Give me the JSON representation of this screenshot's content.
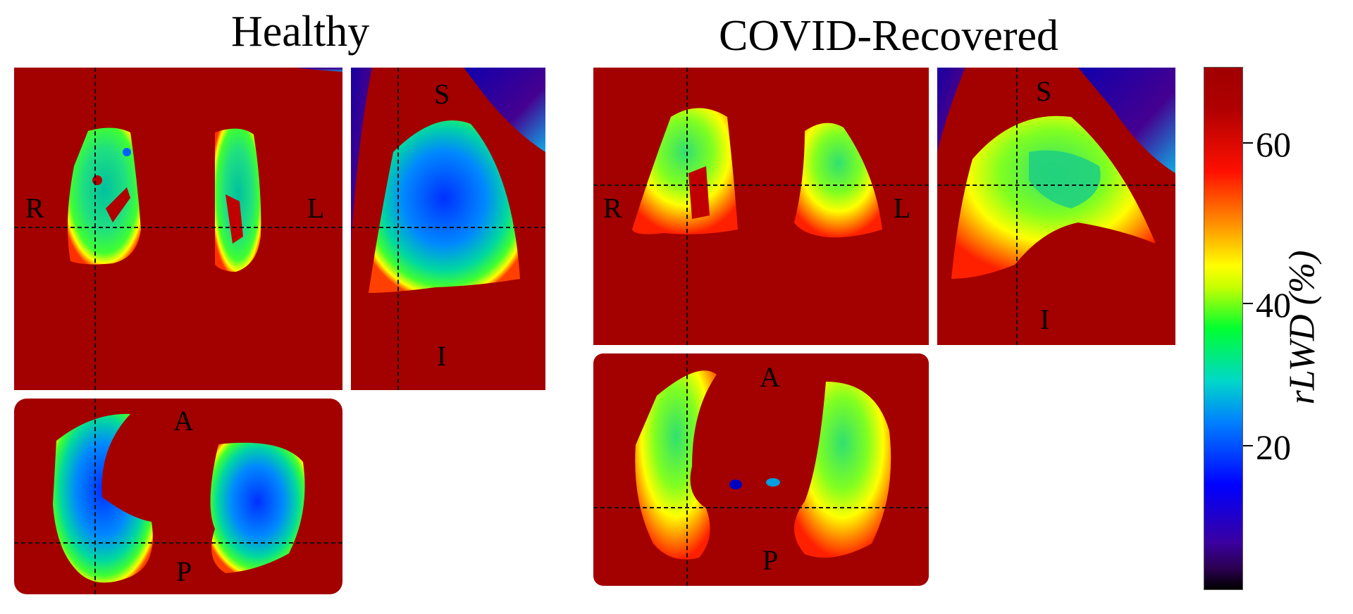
{
  "titles": {
    "healthy": "Healthy",
    "covid": "COVID-Recovered"
  },
  "orientation": {
    "right": "R",
    "left": "L",
    "superior": "S",
    "inferior": "I",
    "anterior": "A",
    "posterior": "P"
  },
  "colorbar": {
    "label": "rLWD (%)",
    "ticks": [
      {
        "label": "60",
        "value": 60
      },
      {
        "label": "40",
        "value": 40
      },
      {
        "label": "20",
        "value": 20
      }
    ],
    "colors": [
      "#000000",
      "#3a00a0",
      "#0000ff",
      "#00d8c8",
      "#00ff30",
      "#ffff00",
      "#ff9000",
      "#ff1000",
      "#a00000"
    ]
  },
  "panels": {
    "healthy_coronal": "healthy-coronal-slice",
    "healthy_sagittal": "healthy-sagittal-slice",
    "healthy_axial": "healthy-axial-slice",
    "covid_coronal": "covid-coronal-slice",
    "covid_sagittal": "covid-sagittal-slice",
    "covid_axial": "covid-axial-slice"
  }
}
